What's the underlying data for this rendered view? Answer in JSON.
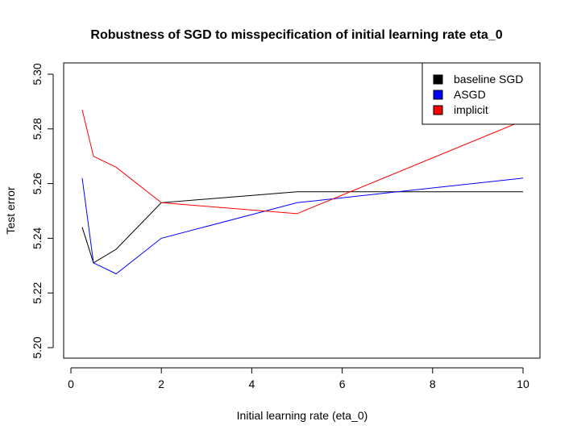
{
  "chart_data": {
    "type": "line",
    "title": "Robustness of SGD to misspecification of initial learning rate eta_0",
    "xlabel": "Initial learning rate (eta_0)",
    "ylabel": "Test error",
    "xlim": [
      0,
      10
    ],
    "ylim": [
      5.2,
      5.3
    ],
    "x_ticks": [
      0,
      2,
      4,
      6,
      8,
      10
    ],
    "y_ticks": [
      5.2,
      5.22,
      5.24,
      5.26,
      5.28,
      5.3
    ],
    "x_tick_labels": [
      "0",
      "2",
      "4",
      "6",
      "8",
      "10"
    ],
    "y_tick_labels": [
      "5.20",
      "5.22",
      "5.24",
      "5.26",
      "5.28",
      "5.30"
    ],
    "grid": false,
    "legend_position": "top-right",
    "x": [
      0.25,
      0.5,
      1,
      2,
      5,
      10
    ],
    "series": [
      {
        "name": "baseline SGD",
        "color": "#000000",
        "values": [
          5.244,
          5.231,
          5.236,
          5.253,
          5.257,
          5.257
        ]
      },
      {
        "name": "ASGD",
        "color": "#0000ff",
        "values": [
          5.262,
          5.231,
          5.227,
          5.24,
          5.253,
          5.262
        ]
      },
      {
        "name": "implicit",
        "color": "#ff0000",
        "values": [
          5.287,
          5.27,
          5.266,
          5.253,
          5.249,
          5.283
        ]
      }
    ]
  }
}
